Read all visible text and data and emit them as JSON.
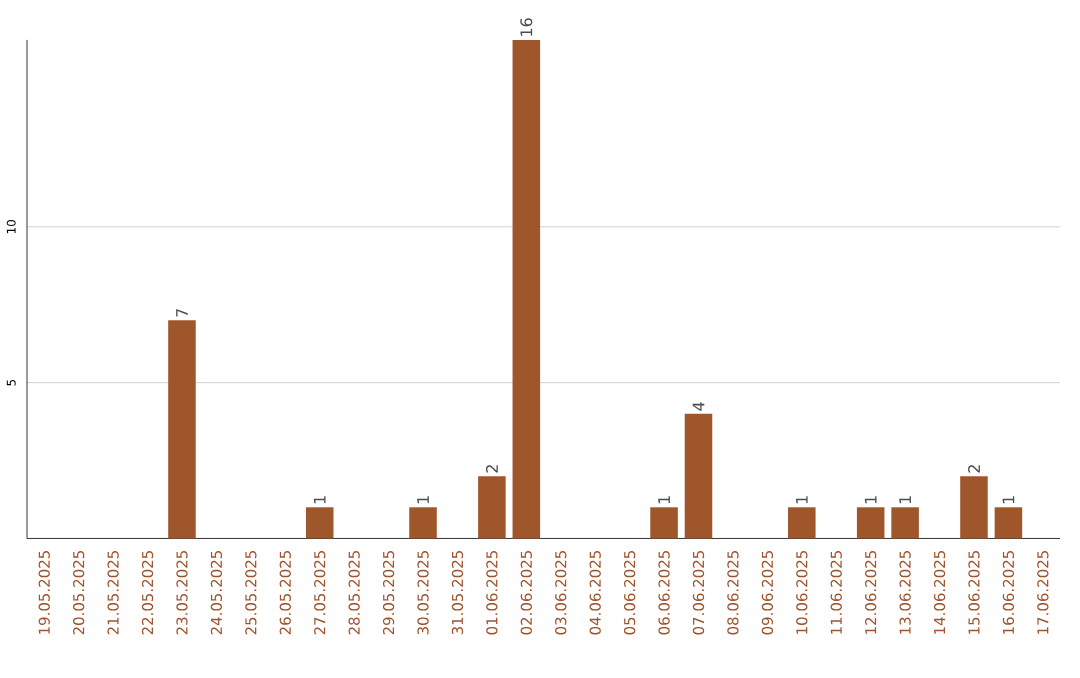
{
  "chart_data": {
    "type": "bar",
    "categories": [
      "19.05.2025",
      "20.05.2025",
      "21.05.2025",
      "22.05.2025",
      "23.05.2025",
      "24.05.2025",
      "25.05.2025",
      "26.05.2025",
      "27.05.2025",
      "28.05.2025",
      "29.05.2025",
      "30.05.2025",
      "31.05.2025",
      "01.06.2025",
      "02.06.2025",
      "03.06.2025",
      "04.06.2025",
      "05.06.2025",
      "06.06.2025",
      "07.06.2025",
      "08.06.2025",
      "09.06.2025",
      "10.06.2025",
      "11.06.2025",
      "12.06.2025",
      "13.06.2025",
      "14.06.2025",
      "15.06.2025",
      "16.06.2025",
      "17.06.2025"
    ],
    "values": [
      0,
      0,
      0,
      0,
      7,
      0,
      0,
      0,
      1,
      0,
      0,
      1,
      0,
      2,
      16,
      0,
      0,
      0,
      1,
      4,
      0,
      0,
      1,
      0,
      1,
      1,
      0,
      2,
      1,
      0
    ],
    "value_labels": [
      null,
      null,
      null,
      null,
      "7",
      null,
      null,
      null,
      "1",
      null,
      null,
      "1",
      null,
      "2",
      "16",
      null,
      null,
      null,
      "1",
      "4",
      null,
      null,
      "1",
      null,
      "1",
      "1",
      null,
      "2",
      "1",
      null
    ],
    "color": "#a0562b",
    "ylim": [
      0,
      16
    ],
    "yticks": [
      5,
      10
    ],
    "grid": "y"
  }
}
